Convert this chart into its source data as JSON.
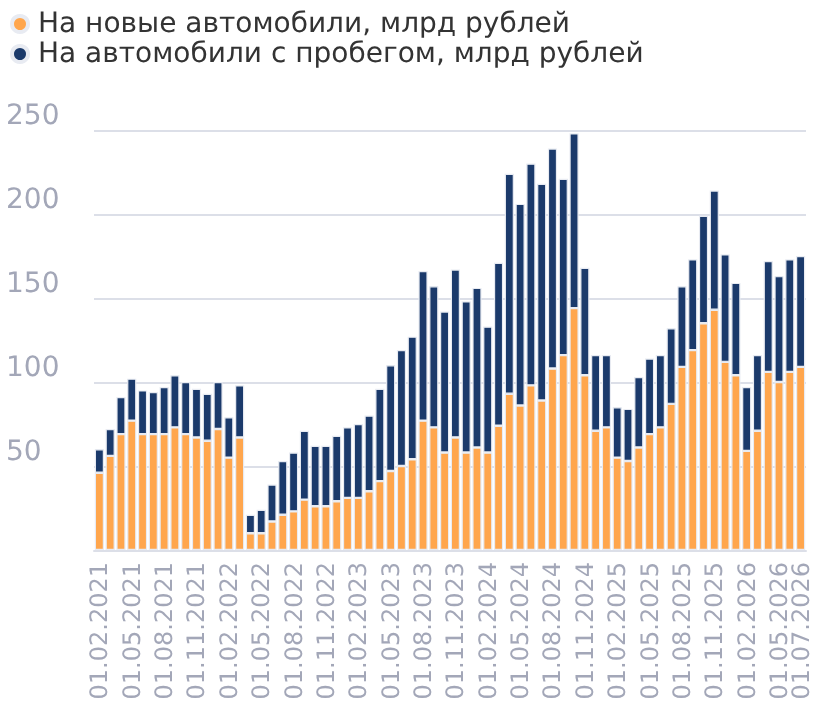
{
  "chart_data": {
    "type": "bar",
    "stacked": true,
    "legend": "top left",
    "grid": "y",
    "ylim": [
      0,
      250
    ],
    "yticks": [
      50,
      100,
      150,
      200,
      250
    ],
    "categories": [
      "01.02.2021",
      null,
      null,
      "01.05.2021",
      null,
      null,
      "01.08.2021",
      null,
      null,
      "01.11.2021",
      null,
      null,
      "01.02.2022",
      null,
      null,
      "01.05.2022",
      null,
      null,
      "01.08.2022",
      null,
      null,
      "01.11.2022",
      null,
      null,
      "01.02.2023",
      null,
      null,
      "01.05.2023",
      null,
      null,
      "01.08.2023",
      null,
      null,
      "01.11.2023",
      null,
      null,
      "01.02.2024",
      null,
      null,
      "01.05.2024",
      null,
      null,
      "01.08.2024",
      null,
      null,
      "01.11.2024",
      null,
      null,
      "01.02.2025",
      null,
      null,
      "01.05.2025",
      null,
      null,
      "01.08.2025",
      null,
      null,
      "01.11.2025",
      null,
      null,
      "01.02.2026",
      null,
      null,
      "01.05.2026",
      null,
      "01.07.2026"
    ],
    "series": [
      {
        "name": "На новые автомобили, млрд рублей",
        "color": "#ffa64d",
        "values": [
          46,
          56,
          69,
          77,
          69,
          69,
          69,
          73,
          69,
          67,
          65,
          72,
          55,
          67,
          10,
          10,
          17,
          21,
          23,
          30,
          26,
          26,
          29,
          31,
          31,
          35,
          41,
          47,
          50,
          54,
          77,
          73,
          58,
          67,
          58,
          61,
          58,
          74,
          93,
          86,
          98,
          89,
          108,
          116,
          144,
          104,
          71,
          73,
          55,
          53,
          61,
          69,
          73,
          87,
          109,
          119,
          135,
          143,
          112,
          104,
          59,
          71,
          106,
          100,
          106,
          109
        ]
      },
      {
        "name": "На автомобили с пробегом, млрд рублей",
        "color": "#1b3a6b",
        "values": [
          14,
          16,
          22,
          25,
          26,
          25,
          28,
          31,
          31,
          29,
          28,
          28,
          24,
          31,
          11,
          14,
          22,
          32,
          35,
          41,
          36,
          36,
          39,
          42,
          44,
          45,
          55,
          63,
          69,
          73,
          89,
          84,
          84,
          100,
          90,
          95,
          75,
          97,
          131,
          120,
          132,
          129,
          131,
          105,
          104,
          64,
          45,
          43,
          30,
          31,
          42,
          45,
          43,
          45,
          48,
          54,
          64,
          71,
          64,
          55,
          38,
          45,
          66,
          63,
          67,
          66
        ]
      }
    ]
  }
}
